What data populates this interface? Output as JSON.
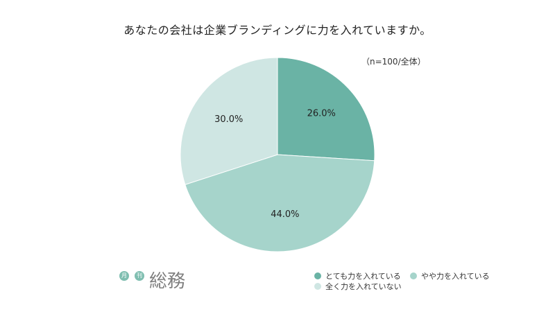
{
  "chart_data": {
    "type": "pie",
    "title": "あなたの会社は企業ブランディングに力を入れていますか。",
    "note": "（n=100/全体）",
    "categories": [
      "とても力を入れている",
      "やや力を入れている",
      "全く力を入れていない"
    ],
    "values": [
      26.0,
      44.0,
      30.0
    ],
    "value_labels": [
      "26.0%",
      "44.0%",
      "30.0%"
    ],
    "colors": [
      "#6ab3a5",
      "#a6d4cb",
      "#cfe6e3"
    ],
    "legend_position": "bottom-right",
    "start_angle": "12 o'clock",
    "direction": "clockwise"
  },
  "logo": {
    "badge1": "月",
    "badge2": "刊",
    "word": "総務"
  }
}
